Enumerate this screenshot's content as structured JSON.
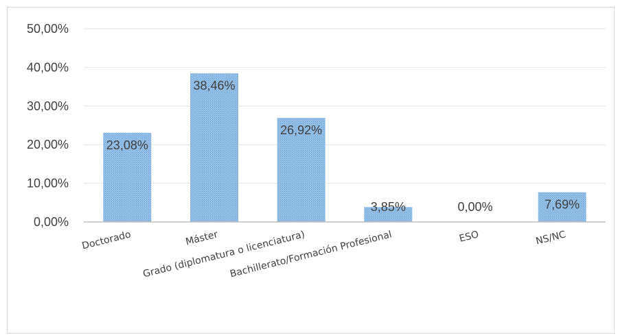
{
  "chart_data": {
    "type": "bar",
    "title": "",
    "xlabel": "",
    "ylabel": "",
    "categories": [
      "Doctorado",
      "Máster",
      "Grado (diplomatura o licenciatura)",
      "Bachillerato/Formación Profesional",
      "ESO",
      "NS/NC"
    ],
    "values": [
      23.08,
      38.46,
      26.92,
      3.85,
      0.0,
      7.69
    ],
    "data_labels": [
      "23,08%",
      "38,46%",
      "26,92%",
      "3,85%",
      "0,00%",
      "7,69%"
    ],
    "ylim": [
      0,
      50
    ],
    "yticks": [
      0,
      10,
      20,
      30,
      40,
      50
    ],
    "ytick_labels": [
      "0,00%",
      "10,00%",
      "20,00%",
      "30,00%",
      "40,00%",
      "50,00%"
    ],
    "grid": true,
    "legend": "none",
    "bar_color": "#9dc3e6",
    "bar_pattern_color": "#5b9bd5",
    "gridline_color": "#e6e6e6",
    "axis_color": "#bfbfbf"
  }
}
